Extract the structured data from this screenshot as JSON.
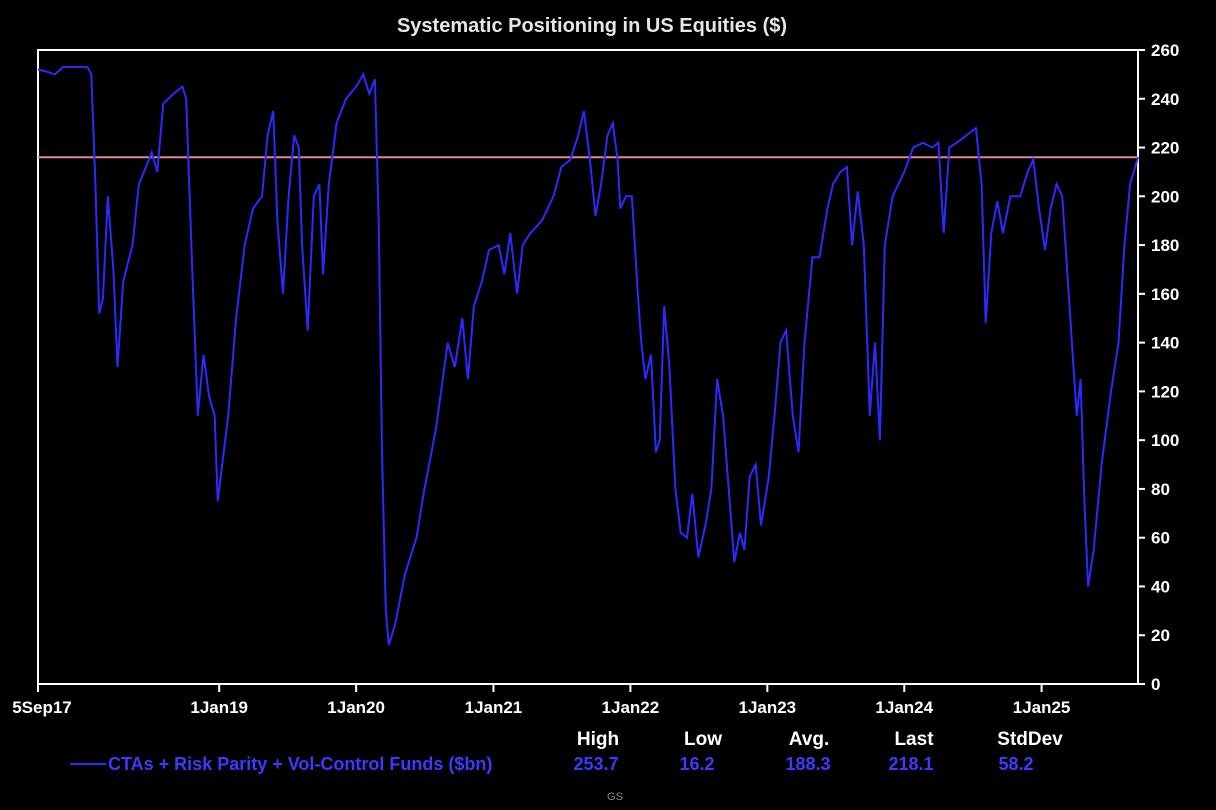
{
  "chart_data": {
    "type": "line",
    "title": "Systematic Positioning in US Equities ($)",
    "x_tick_labels": [
      "5Sep17",
      "1Jan19",
      "1Jan20",
      "1Jan21",
      "1Jan22",
      "1Jan23",
      "1Jan24",
      "1Jan25"
    ],
    "xlim": [
      "2017-09-05",
      "2025-09-15"
    ],
    "ylim": [
      0,
      260
    ],
    "y_ticks": [
      0,
      20,
      40,
      60,
      80,
      100,
      120,
      140,
      160,
      180,
      200,
      220,
      240,
      260
    ],
    "y_axis_side": "right",
    "grid": false,
    "reference_line": {
      "y": 216,
      "color": "#d98b96"
    },
    "series": [
      {
        "name": "CTAs + Risk Parity + Vol-Control Funds ($bn)",
        "color": "#2b2bff",
        "points": [
          [
            "2017-09-05",
            252
          ],
          [
            "2017-10-01",
            251
          ],
          [
            "2017-10-20",
            250
          ],
          [
            "2017-11-10",
            253
          ],
          [
            "2017-12-10",
            253
          ],
          [
            "2018-01-15",
            253
          ],
          [
            "2018-01-25",
            250
          ],
          [
            "2018-02-05",
            205
          ],
          [
            "2018-02-15",
            152
          ],
          [
            "2018-02-25",
            158
          ],
          [
            "2018-03-10",
            200
          ],
          [
            "2018-03-25",
            170
          ],
          [
            "2018-04-05",
            130
          ],
          [
            "2018-04-20",
            165
          ],
          [
            "2018-05-15",
            180
          ],
          [
            "2018-06-01",
            205
          ],
          [
            "2018-06-20",
            212
          ],
          [
            "2018-07-05",
            218
          ],
          [
            "2018-07-20",
            210
          ],
          [
            "2018-08-05",
            238
          ],
          [
            "2018-09-01",
            242
          ],
          [
            "2018-09-25",
            245
          ],
          [
            "2018-10-05",
            240
          ],
          [
            "2018-10-20",
            175
          ],
          [
            "2018-11-05",
            110
          ],
          [
            "2018-11-20",
            135
          ],
          [
            "2018-12-05",
            118
          ],
          [
            "2018-12-20",
            110
          ],
          [
            "2018-12-28",
            75
          ],
          [
            "2019-01-25",
            110
          ],
          [
            "2019-02-15",
            150
          ],
          [
            "2019-03-10",
            180
          ],
          [
            "2019-04-01",
            195
          ],
          [
            "2019-04-25",
            200
          ],
          [
            "2019-05-10",
            225
          ],
          [
            "2019-05-25",
            235
          ],
          [
            "2019-06-05",
            190
          ],
          [
            "2019-06-20",
            160
          ],
          [
            "2019-07-05",
            200
          ],
          [
            "2019-07-20",
            225
          ],
          [
            "2019-08-01",
            220
          ],
          [
            "2019-08-10",
            180
          ],
          [
            "2019-08-25",
            145
          ],
          [
            "2019-09-10",
            200
          ],
          [
            "2019-09-25",
            205
          ],
          [
            "2019-10-05",
            168
          ],
          [
            "2019-10-20",
            205
          ],
          [
            "2019-11-10",
            230
          ],
          [
            "2019-12-05",
            240
          ],
          [
            "2020-01-01",
            245
          ],
          [
            "2020-01-20",
            250
          ],
          [
            "2020-02-05",
            242
          ],
          [
            "2020-02-20",
            248
          ],
          [
            "2020-03-01",
            190
          ],
          [
            "2020-03-10",
            95
          ],
          [
            "2020-03-20",
            30
          ],
          [
            "2020-03-28",
            16
          ],
          [
            "2020-04-15",
            25
          ],
          [
            "2020-05-10",
            45
          ],
          [
            "2020-06-10",
            60
          ],
          [
            "2020-07-01",
            80
          ],
          [
            "2020-08-01",
            105
          ],
          [
            "2020-09-01",
            140
          ],
          [
            "2020-09-20",
            130
          ],
          [
            "2020-10-10",
            150
          ],
          [
            "2020-10-25",
            125
          ],
          [
            "2020-11-10",
            155
          ],
          [
            "2020-12-01",
            165
          ],
          [
            "2020-12-20",
            178
          ],
          [
            "2021-01-15",
            180
          ],
          [
            "2021-01-30",
            168
          ],
          [
            "2021-02-15",
            185
          ],
          [
            "2021-03-05",
            160
          ],
          [
            "2021-03-20",
            180
          ],
          [
            "2021-04-10",
            185
          ],
          [
            "2021-05-10",
            190
          ],
          [
            "2021-06-10",
            200
          ],
          [
            "2021-07-01",
            212
          ],
          [
            "2021-07-25",
            215
          ],
          [
            "2021-08-15",
            225
          ],
          [
            "2021-08-30",
            235
          ],
          [
            "2021-09-15",
            215
          ],
          [
            "2021-09-30",
            192
          ],
          [
            "2021-10-15",
            205
          ],
          [
            "2021-11-01",
            225
          ],
          [
            "2021-11-15",
            230
          ],
          [
            "2021-11-28",
            215
          ],
          [
            "2021-12-05",
            195
          ],
          [
            "2021-12-20",
            200
          ],
          [
            "2022-01-05",
            200
          ],
          [
            "2022-01-20",
            162
          ],
          [
            "2022-01-30",
            140
          ],
          [
            "2022-02-10",
            125
          ],
          [
            "2022-02-25",
            135
          ],
          [
            "2022-03-10",
            95
          ],
          [
            "2022-03-20",
            100
          ],
          [
            "2022-04-01",
            155
          ],
          [
            "2022-04-15",
            130
          ],
          [
            "2022-05-01",
            80
          ],
          [
            "2022-05-15",
            62
          ],
          [
            "2022-06-01",
            60
          ],
          [
            "2022-06-15",
            78
          ],
          [
            "2022-07-01",
            52
          ],
          [
            "2022-07-20",
            65
          ],
          [
            "2022-08-05",
            80
          ],
          [
            "2022-08-20",
            125
          ],
          [
            "2022-09-05",
            110
          ],
          [
            "2022-09-20",
            80
          ],
          [
            "2022-10-05",
            50
          ],
          [
            "2022-10-20",
            62
          ],
          [
            "2022-11-01",
            55
          ],
          [
            "2022-11-15",
            85
          ],
          [
            "2022-12-01",
            90
          ],
          [
            "2022-12-15",
            65
          ],
          [
            "2023-01-05",
            85
          ],
          [
            "2023-01-20",
            110
          ],
          [
            "2023-02-05",
            140
          ],
          [
            "2023-02-20",
            145
          ],
          [
            "2023-03-10",
            110
          ],
          [
            "2023-03-25",
            95
          ],
          [
            "2023-04-10",
            140
          ],
          [
            "2023-05-01",
            175
          ],
          [
            "2023-05-20",
            175
          ],
          [
            "2023-06-10",
            195
          ],
          [
            "2023-06-25",
            205
          ],
          [
            "2023-07-15",
            210
          ],
          [
            "2023-08-01",
            212
          ],
          [
            "2023-08-15",
            180
          ],
          [
            "2023-08-30",
            202
          ],
          [
            "2023-09-15",
            180
          ],
          [
            "2023-10-01",
            110
          ],
          [
            "2023-10-15",
            140
          ],
          [
            "2023-10-28",
            100
          ],
          [
            "2023-11-10",
            180
          ],
          [
            "2023-12-01",
            200
          ],
          [
            "2024-01-01",
            210
          ],
          [
            "2024-01-25",
            220
          ],
          [
            "2024-02-20",
            222
          ],
          [
            "2024-03-15",
            220
          ],
          [
            "2024-04-01",
            222
          ],
          [
            "2024-04-15",
            185
          ],
          [
            "2024-04-30",
            220
          ],
          [
            "2024-05-20",
            222
          ],
          [
            "2024-06-15",
            225
          ],
          [
            "2024-07-10",
            228
          ],
          [
            "2024-07-25",
            205
          ],
          [
            "2024-08-05",
            148
          ],
          [
            "2024-08-20",
            185
          ],
          [
            "2024-09-05",
            198
          ],
          [
            "2024-09-20",
            185
          ],
          [
            "2024-10-10",
            200
          ],
          [
            "2024-11-05",
            200
          ],
          [
            "2024-11-25",
            210
          ],
          [
            "2024-12-10",
            215
          ],
          [
            "2024-12-25",
            195
          ],
          [
            "2025-01-10",
            178
          ],
          [
            "2025-01-25",
            195
          ],
          [
            "2025-02-10",
            205
          ],
          [
            "2025-02-25",
            200
          ],
          [
            "2025-03-10",
            170
          ],
          [
            "2025-03-25",
            135
          ],
          [
            "2025-04-05",
            110
          ],
          [
            "2025-04-15",
            125
          ],
          [
            "2025-04-25",
            75
          ],
          [
            "2025-05-05",
            40
          ],
          [
            "2025-05-20",
            55
          ],
          [
            "2025-06-10",
            90
          ],
          [
            "2025-07-05",
            120
          ],
          [
            "2025-07-25",
            140
          ],
          [
            "2025-08-10",
            180
          ],
          [
            "2025-08-25",
            205
          ],
          [
            "2025-09-15",
            216
          ]
        ]
      }
    ]
  },
  "stats": {
    "headers": [
      "High",
      "Low",
      "Avg.",
      "Last",
      "StdDev"
    ],
    "values": [
      "253.7",
      "16.2",
      "188.3",
      "218.1",
      "58.2"
    ]
  },
  "legend": {
    "label": "CTAs + Risk Parity + Vol-Control Funds ($bn)"
  },
  "source": "GS"
}
